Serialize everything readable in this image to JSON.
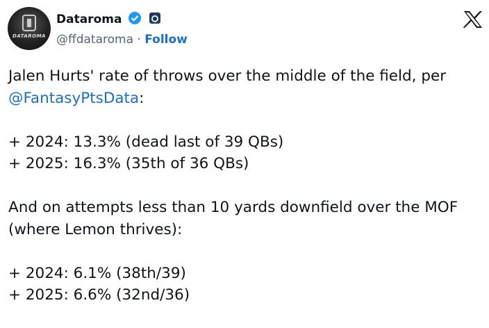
{
  "author": {
    "name": "Dataroma",
    "handle": "@ffdataroma",
    "separator": "·",
    "follow": "Follow",
    "avatar_text": "DATAROMA"
  },
  "tweet": {
    "intro": "Jalen Hurts' rate of throws over the middle of the field, per",
    "mention": "@FantasyPtsData",
    "intro_end": ":",
    "list_1": [
      "+ 2024: 13.3% (dead last of 39 QBs)",
      "+ 2025: 16.3% (35th of 36 QBs)"
    ],
    "outro": "And on attempts less than 10 yards downfield over the MOF (where Lemon thrives):",
    "list_2": [
      "+ 2024: 6.1% (38th/39)",
      "+ 2025: 6.6% (32nd/36)"
    ]
  }
}
